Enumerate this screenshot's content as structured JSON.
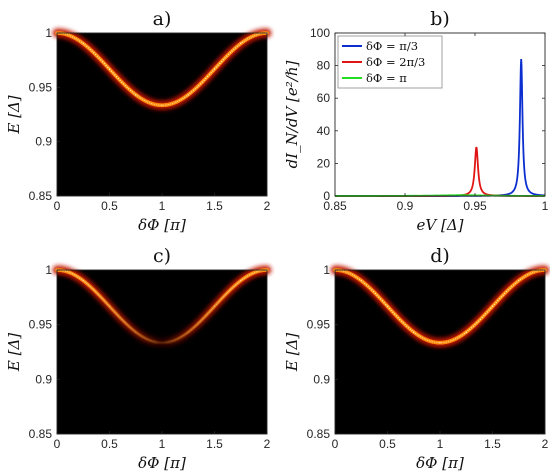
{
  "panels": [
    {
      "type": "heatmap",
      "title": "a)",
      "xlabel": "δΦ [π]",
      "ylabel": "E [Δ]",
      "xlim": [
        0,
        2
      ],
      "ylim": [
        0.85,
        1
      ],
      "xticks": [
        "0",
        "0.5",
        "1",
        "1.5",
        "2"
      ],
      "yticks": [
        "0.85",
        "0.9",
        "0.95",
        "1"
      ],
      "x": [
        0,
        0.25,
        0.5,
        0.75,
        1.0,
        1.25,
        1.5,
        1.75,
        2.0
      ],
      "y": [
        1.0,
        0.9905,
        0.967,
        0.943,
        0.9335,
        0.943,
        0.967,
        0.9905,
        1.0
      ],
      "intensity": [
        1,
        1,
        1,
        1,
        1,
        1,
        1,
        1,
        1
      ]
    },
    {
      "type": "line",
      "title": "b)",
      "xlabel": "eV [Δ]",
      "ylabel": "dI_N/dV [e²/ℏ]",
      "xlim": [
        0.85,
        1
      ],
      "ylim": [
        0,
        100
      ],
      "xticks": [
        "0.85",
        "0.9",
        "0.95",
        "1"
      ],
      "yticks": [
        "0",
        "20",
        "40",
        "60",
        "80",
        "100"
      ],
      "legend": [
        "δΦ = π/3",
        "δΦ = 2π/3",
        "δΦ = π"
      ],
      "legend_position": "top-left",
      "series": [
        {
          "name": "δΦ = π/3",
          "color": "#0a2ecf",
          "peak_x": 0.983,
          "peak_y": 84,
          "width": 0.0011
        },
        {
          "name": "δΦ = 2π/3",
          "color": "#e01414",
          "peak_x": 0.951,
          "peak_y": 30,
          "width": 0.0014
        },
        {
          "name": "δΦ = π",
          "color": "#22dd22",
          "peak_x": 0.94,
          "peak_y": 0.5,
          "width": 0.02
        }
      ]
    },
    {
      "type": "heatmap",
      "title": "c)",
      "xlabel": "δΦ [π]",
      "ylabel": "E [Δ]",
      "xlim": [
        0,
        2
      ],
      "ylim": [
        0.85,
        1
      ],
      "xticks": [
        "0",
        "0.5",
        "1",
        "1.5",
        "2"
      ],
      "yticks": [
        "0.85",
        "0.9",
        "0.95",
        "1"
      ],
      "x": [
        0,
        0.25,
        0.5,
        0.75,
        1.0,
        1.25,
        1.5,
        1.75,
        2.0
      ],
      "y": [
        1.0,
        0.9905,
        0.967,
        0.943,
        0.9335,
        0.943,
        0.967,
        0.9905,
        1.0
      ],
      "intensity": [
        1,
        0.65,
        0.38,
        0.18,
        0.04,
        0.18,
        0.38,
        0.65,
        1
      ]
    },
    {
      "type": "heatmap",
      "title": "d)",
      "xlabel": "δΦ [π]",
      "ylabel": "E [Δ]",
      "xlim": [
        0,
        2
      ],
      "ylim": [
        0.85,
        1
      ],
      "xticks": [
        "0",
        "0.5",
        "1",
        "1.5",
        "2"
      ],
      "yticks": [
        "0.85",
        "0.9",
        "0.95",
        "1"
      ],
      "x": [
        0,
        0.25,
        0.5,
        0.75,
        1.0,
        1.25,
        1.5,
        1.75,
        2.0
      ],
      "y": [
        1.0,
        0.9905,
        0.967,
        0.943,
        0.9335,
        0.943,
        0.967,
        0.9905,
        1.0
      ],
      "intensity": [
        1,
        1,
        1,
        1,
        1,
        1,
        1,
        1,
        1
      ]
    }
  ],
  "chart_data": [
    {
      "type": "heatmap",
      "title": "a)",
      "xlabel": "δΦ [π]",
      "ylabel": "E [Δ]",
      "xlim": [
        0,
        2
      ],
      "ylim": [
        0.85,
        1
      ],
      "x": [
        0,
        0.25,
        0.5,
        0.75,
        1.0,
        1.25,
        1.5,
        1.75,
        2.0
      ],
      "y": [
        1.0,
        0.9905,
        0.967,
        0.943,
        0.9335,
        0.943,
        0.967,
        0.9905,
        1.0
      ]
    },
    {
      "type": "line",
      "title": "b)",
      "xlabel": "eV [Δ]",
      "ylabel": "dI_N/dV [e²/ℏ]",
      "xlim": [
        0.85,
        1
      ],
      "ylim": [
        0,
        100
      ],
      "series": [
        {
          "name": "δΦ = π/3",
          "peak_x": 0.983,
          "peak_y": 84
        },
        {
          "name": "δΦ = 2π/3",
          "peak_x": 0.951,
          "peak_y": 30
        },
        {
          "name": "δΦ = π",
          "peak_x": 0.94,
          "peak_y": 0.5
        }
      ]
    },
    {
      "type": "heatmap",
      "title": "c)",
      "xlabel": "δΦ [π]",
      "ylabel": "E [Δ]",
      "xlim": [
        0,
        2
      ],
      "ylim": [
        0.85,
        1
      ],
      "x": [
        0,
        0.25,
        0.5,
        0.75,
        1.0,
        1.25,
        1.5,
        1.75,
        2.0
      ],
      "y": [
        1.0,
        0.9905,
        0.967,
        0.943,
        0.9335,
        0.943,
        0.967,
        0.9905,
        1.0
      ]
    },
    {
      "type": "heatmap",
      "title": "d)",
      "xlabel": "δΦ [π]",
      "ylabel": "E [Δ]",
      "xlim": [
        0,
        2
      ],
      "ylim": [
        0.85,
        1
      ],
      "x": [
        0,
        0.25,
        0.5,
        0.75,
        1.0,
        1.25,
        1.5,
        1.75,
        2.0
      ],
      "y": [
        1.0,
        0.9905,
        0.967,
        0.943,
        0.9335,
        0.943,
        0.967,
        0.9905,
        1.0
      ]
    }
  ]
}
